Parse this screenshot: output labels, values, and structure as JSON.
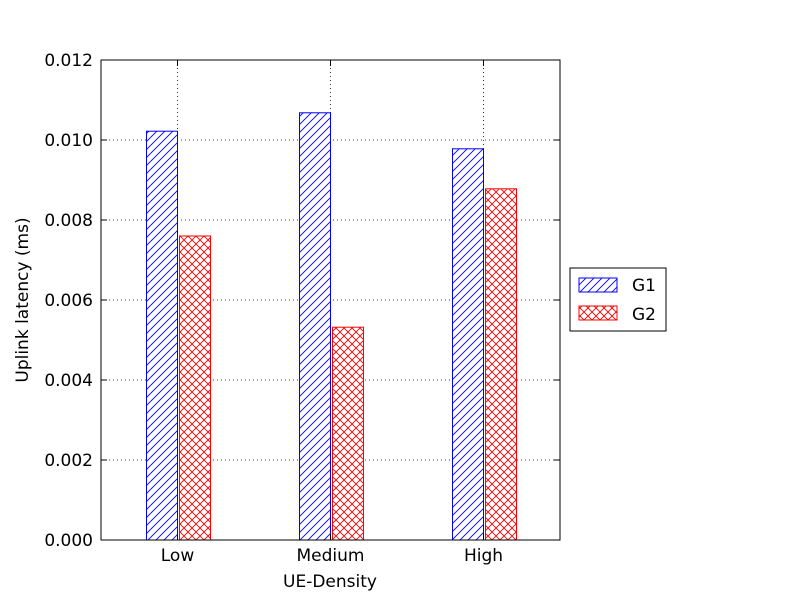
{
  "chart_data": {
    "type": "bar",
    "title": "",
    "xlabel": "UE-Density",
    "ylabel": "Uplink latency (ms)",
    "categories": [
      "Low",
      "Medium",
      "High"
    ],
    "ylim": [
      0,
      0.012
    ],
    "yticks": [
      "0.000",
      "0.002",
      "0.004",
      "0.006",
      "0.008",
      "0.010",
      "0.012"
    ],
    "yticks_values": [
      0,
      0.002,
      0.004,
      0.006,
      0.008,
      0.01,
      0.012
    ],
    "grid": true,
    "legend_position": "right-outside",
    "series": [
      {
        "name": "G1",
        "values": [
          0.01022,
          0.01068,
          0.00978
        ],
        "color": "#0000ff",
        "hatch": "diagonal"
      },
      {
        "name": "G2",
        "values": [
          0.0076,
          0.00532,
          0.00878
        ],
        "color": "#ff0000",
        "hatch": "crosshatch"
      }
    ]
  }
}
